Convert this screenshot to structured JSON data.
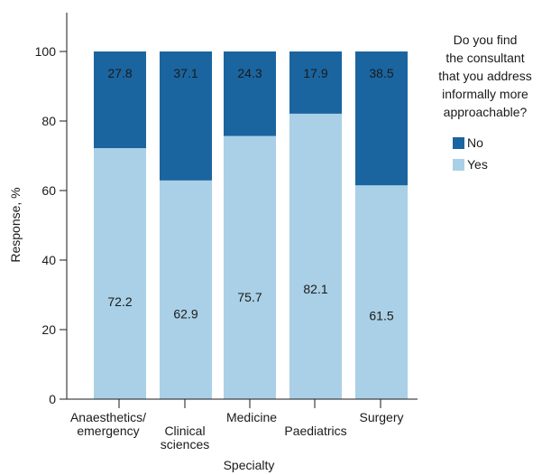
{
  "chart_data": {
    "type": "bar",
    "stacked": true,
    "categories": [
      [
        "Anaesthetics/",
        "emergency"
      ],
      [
        "Clinical",
        "sciences"
      ],
      [
        "Medicine"
      ],
      [
        "Paediatrics"
      ],
      [
        "Surgery"
      ]
    ],
    "series": [
      {
        "name": "Yes",
        "color": "#a9d0e6",
        "values": [
          72.2,
          62.9,
          75.7,
          82.1,
          61.5
        ]
      },
      {
        "name": "No",
        "color": "#1a65a0",
        "values": [
          27.8,
          37.1,
          24.3,
          17.9,
          38.5
        ]
      }
    ],
    "xlabel": "Specialty",
    "ylabel": "Response, %",
    "ylim": [
      0,
      100
    ],
    "yticks": [
      0,
      20,
      40,
      60,
      80,
      100
    ],
    "grid": false,
    "legend": {
      "placement": "right",
      "title_lines": [
        "Do you find",
        "the consultant",
        "that you address",
        "informally more",
        "approachable?"
      ],
      "order": [
        "No",
        "Yes"
      ]
    }
  }
}
